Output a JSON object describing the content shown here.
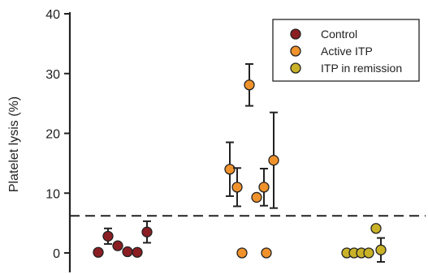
{
  "chart_data": {
    "type": "scatter",
    "ylabel": "Platelet lysis (%)",
    "ylim": [
      0,
      40
    ],
    "yticks": [
      0,
      10,
      20,
      30,
      40
    ],
    "grid": false,
    "legend_position": "top-right",
    "reference_line": {
      "y": 6.2,
      "style": "dashed"
    },
    "groups": [
      "Control",
      "Active ITP",
      "ITP in remission"
    ],
    "series": [
      {
        "name": "Control",
        "color": "#8b1e23",
        "points": [
          {
            "x": 0.82,
            "y": 0.1
          },
          {
            "x": 0.9,
            "y": 2.8,
            "err": 1.3
          },
          {
            "x": 0.98,
            "y": 1.2
          },
          {
            "x": 1.06,
            "y": 0.2
          },
          {
            "x": 1.14,
            "y": 0.1
          },
          {
            "x": 1.22,
            "y": 3.5,
            "err": 1.8
          }
        ]
      },
      {
        "name": "Active ITP",
        "color": "#f0922b",
        "points": [
          {
            "x": 1.9,
            "y": 14.0,
            "err": 4.5
          },
          {
            "x": 1.96,
            "y": 11.0,
            "err": 3.2
          },
          {
            "x": 2.0,
            "y": 0.0
          },
          {
            "x": 2.06,
            "y": 28.1,
            "err": 3.5
          },
          {
            "x": 2.12,
            "y": 9.3
          },
          {
            "x": 2.18,
            "y": 11.0,
            "err": 3.1
          },
          {
            "x": 2.2,
            "y": 0.0
          },
          {
            "x": 2.26,
            "y": 15.5,
            "err": 8.0
          }
        ]
      },
      {
        "name": "ITP in remission",
        "color": "#c9b227",
        "points": [
          {
            "x": 2.86,
            "y": 0.0
          },
          {
            "x": 2.92,
            "y": 0.0
          },
          {
            "x": 2.98,
            "y": 0.0
          },
          {
            "x": 3.04,
            "y": 0.0
          },
          {
            "x": 3.1,
            "y": 4.1
          },
          {
            "x": 3.14,
            "y": 0.5,
            "err": 2.0
          }
        ]
      }
    ]
  }
}
